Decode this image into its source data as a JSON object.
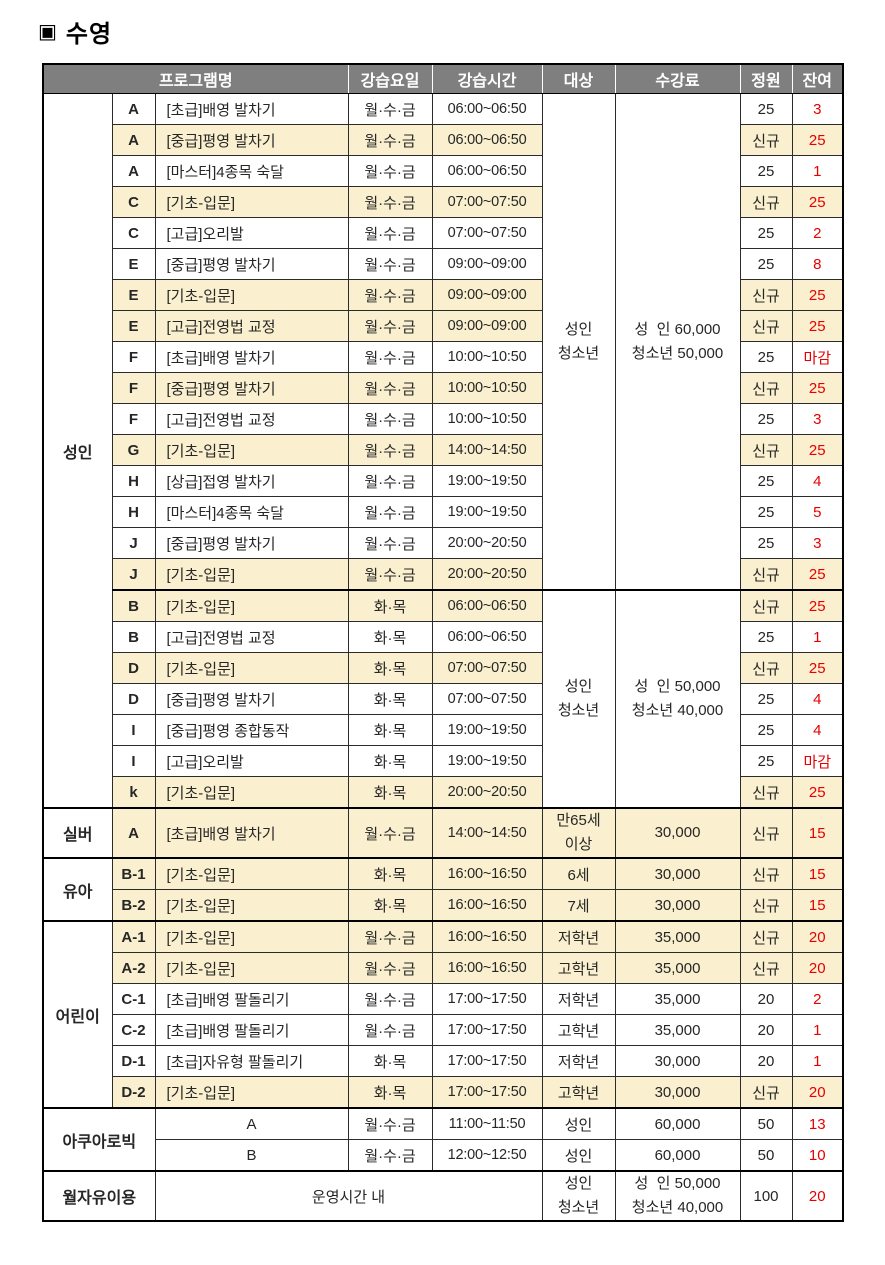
{
  "page": {
    "title_marker": "▣",
    "title": "수영"
  },
  "colors": {
    "header_bg": "#7f7f7f",
    "header_text": "#ffffff",
    "highlight_yellow": "#faf0cf",
    "remaining_red": "#e60000"
  },
  "table": {
    "headers": {
      "program": "프로그램명",
      "days": "강습요일",
      "time": "강습시간",
      "target": "대상",
      "fee": "수강료",
      "capacity": "정원",
      "remaining": "잔여"
    },
    "groups": [
      {
        "label": "성인",
        "blocks": [
          {
            "target": [
              "성인",
              "청소년"
            ],
            "fee": [
              "성  인 60,000",
              "청소년 50,000"
            ],
            "rows": [
              {
                "code": "A",
                "name": "[초급]배영 발차기",
                "days": "월·수·금",
                "time": "06:00~06:50",
                "capacity": "25",
                "remaining": "3"
              },
              {
                "code": "A",
                "name": "[중급]평영 발차기",
                "days": "월·수·금",
                "time": "06:00~06:50",
                "capacity": "신규",
                "remaining": "25",
                "highlight": true
              },
              {
                "code": "A",
                "name": "[마스터]4종목 숙달",
                "days": "월·수·금",
                "time": "06:00~06:50",
                "capacity": "25",
                "remaining": "1"
              },
              {
                "code": "C",
                "name": "[기초-입문]",
                "days": "월·수·금",
                "time": "07:00~07:50",
                "capacity": "신규",
                "remaining": "25",
                "highlight": true
              },
              {
                "code": "C",
                "name": "[고급]오리발",
                "days": "월·수·금",
                "time": "07:00~07:50",
                "capacity": "25",
                "remaining": "2"
              },
              {
                "code": "E",
                "name": "[중급]평영 발차기",
                "days": "월·수·금",
                "time": "09:00~09:00",
                "capacity": "25",
                "remaining": "8"
              },
              {
                "code": "E",
                "name": "[기초-입문]",
                "days": "월·수·금",
                "time": "09:00~09:00",
                "capacity": "신규",
                "remaining": "25",
                "highlight": true
              },
              {
                "code": "E",
                "name": "[고급]전영법 교정",
                "days": "월·수·금",
                "time": "09:00~09:00",
                "capacity": "신규",
                "remaining": "25",
                "highlight": true
              },
              {
                "code": "F",
                "name": "[초급]배영 발차기",
                "days": "월·수·금",
                "time": "10:00~10:50",
                "capacity": "25",
                "remaining": "마감"
              },
              {
                "code": "F",
                "name": "[중급]평영 발차기",
                "days": "월·수·금",
                "time": "10:00~10:50",
                "capacity": "신규",
                "remaining": "25",
                "highlight": true
              },
              {
                "code": "F",
                "name": "[고급]전영법 교정",
                "days": "월·수·금",
                "time": "10:00~10:50",
                "capacity": "25",
                "remaining": "3"
              },
              {
                "code": "G",
                "name": "[기초-입문]",
                "days": "월·수·금",
                "time": "14:00~14:50",
                "capacity": "신규",
                "remaining": "25",
                "highlight": true
              },
              {
                "code": "H",
                "name": "[상급]접영 발차기",
                "days": "월·수·금",
                "time": "19:00~19:50",
                "capacity": "25",
                "remaining": "4"
              },
              {
                "code": "H",
                "name": "[마스터]4종목 숙달",
                "days": "월·수·금",
                "time": "19:00~19:50",
                "capacity": "25",
                "remaining": "5"
              },
              {
                "code": "J",
                "name": "[중급]평영 발차기",
                "days": "월·수·금",
                "time": "20:00~20:50",
                "capacity": "25",
                "remaining": "3"
              },
              {
                "code": "J",
                "name": "[기초-입문]",
                "days": "월·수·금",
                "time": "20:00~20:50",
                "capacity": "신규",
                "remaining": "25",
                "highlight": true
              }
            ]
          },
          {
            "target": [
              "성인",
              "청소년"
            ],
            "fee": [
              "성  인 50,000",
              "청소년 40,000"
            ],
            "rows": [
              {
                "code": "B",
                "name": "[기초-입문]",
                "days": "화·목",
                "time": "06:00~06:50",
                "capacity": "신규",
                "remaining": "25",
                "highlight": true
              },
              {
                "code": "B",
                "name": "[고급]전영법 교정",
                "days": "화·목",
                "time": "06:00~06:50",
                "capacity": "25",
                "remaining": "1"
              },
              {
                "code": "D",
                "name": "[기초-입문]",
                "days": "화·목",
                "time": "07:00~07:50",
                "capacity": "신규",
                "remaining": "25",
                "highlight": true
              },
              {
                "code": "D",
                "name": "[중급]평영 발차기",
                "days": "화·목",
                "time": "07:00~07:50",
                "capacity": "25",
                "remaining": "4"
              },
              {
                "code": "I",
                "name": "[중급]평영 종합동작",
                "days": "화·목",
                "time": "19:00~19:50",
                "capacity": "25",
                "remaining": "4"
              },
              {
                "code": "I",
                "name": "[고급]오리발",
                "days": "화·목",
                "time": "19:00~19:50",
                "capacity": "25",
                "remaining": "마감"
              },
              {
                "code": "k",
                "name": "[기초-입문]",
                "days": "화·목",
                "time": "20:00~20:50",
                "capacity": "신규",
                "remaining": "25",
                "highlight": true
              }
            ]
          }
        ]
      },
      {
        "label": "실버",
        "blocks": [
          {
            "target": [
              "만65세",
              "이상"
            ],
            "fee": [
              "30,000"
            ],
            "rows": [
              {
                "code": "A",
                "name": "[초급]배영 발차기",
                "days": "월·수·금",
                "time": "14:00~14:50",
                "capacity": "신규",
                "remaining": "15",
                "highlight": true
              }
            ]
          }
        ]
      },
      {
        "label": "유아",
        "blocks": [
          {
            "rows": [
              {
                "code": "B-1",
                "name": "[기초-입문]",
                "days": "화·목",
                "time": "16:00~16:50",
                "target": "6세",
                "fee": "30,000",
                "capacity": "신규",
                "remaining": "15",
                "highlight": true
              },
              {
                "code": "B-2",
                "name": "[기초-입문]",
                "days": "화·목",
                "time": "16:00~16:50",
                "target": "7세",
                "fee": "30,000",
                "capacity": "신규",
                "remaining": "15",
                "highlight": true
              }
            ]
          }
        ]
      },
      {
        "label": "어린이",
        "blocks": [
          {
            "rows": [
              {
                "code": "A-1",
                "name": "[기초-입문]",
                "days": "월·수·금",
                "time": "16:00~16:50",
                "target": "저학년",
                "fee": "35,000",
                "capacity": "신규",
                "remaining": "20",
                "highlight": true
              },
              {
                "code": "A-2",
                "name": "[기초-입문]",
                "days": "월·수·금",
                "time": "16:00~16:50",
                "target": "고학년",
                "fee": "35,000",
                "capacity": "신규",
                "remaining": "20",
                "highlight": true
              },
              {
                "code": "C-1",
                "name": "[초급]배영 팔돌리기",
                "days": "월·수·금",
                "time": "17:00~17:50",
                "target": "저학년",
                "fee": "35,000",
                "capacity": "20",
                "remaining": "2"
              },
              {
                "code": "C-2",
                "name": "[초급]배영 팔돌리기",
                "days": "월·수·금",
                "time": "17:00~17:50",
                "target": "고학년",
                "fee": "35,000",
                "capacity": "20",
                "remaining": "1"
              },
              {
                "code": "D-1",
                "name": "[초급]자유형 팔돌리기",
                "days": "화·목",
                "time": "17:00~17:50",
                "target": "저학년",
                "fee": "30,000",
                "capacity": "20",
                "remaining": "1"
              },
              {
                "code": "D-2",
                "name": "[기초-입문]",
                "days": "화·목",
                "time": "17:00~17:50",
                "target": "고학년",
                "fee": "30,000",
                "capacity": "신규",
                "remaining": "20",
                "highlight": true
              }
            ]
          }
        ]
      },
      {
        "label": "아쿠아로빅",
        "label_colspan": 2,
        "blocks": [
          {
            "rows": [
              {
                "name": "A",
                "days": "월·수·금",
                "time": "11:00~11:50",
                "target": "성인",
                "fee": "60,000",
                "capacity": "50",
                "remaining": "13"
              },
              {
                "name": "B",
                "days": "월·수·금",
                "time": "12:00~12:50",
                "target": "성인",
                "fee": "60,000",
                "capacity": "50",
                "remaining": "10"
              }
            ]
          }
        ]
      },
      {
        "label": "월자유이용",
        "label_colspan": 2,
        "blocks": [
          {
            "target": [
              "성인",
              "청소년"
            ],
            "fee": [
              "성  인 50,000",
              "청소년 40,000"
            ],
            "rows": [
              {
                "name": "운영시간 내",
                "capacity": "100",
                "remaining": "20"
              }
            ]
          }
        ]
      }
    ]
  }
}
